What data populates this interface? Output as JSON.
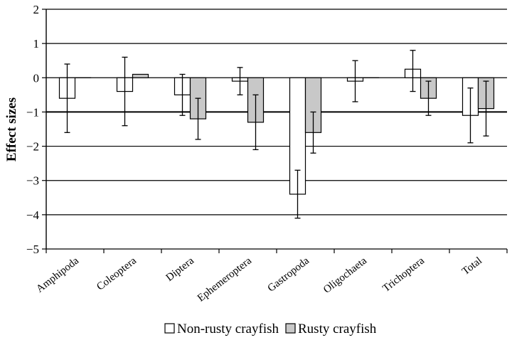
{
  "chart_data": {
    "type": "bar",
    "categories": [
      "Amphipoda",
      "Coleoptera",
      "Diptera",
      "Ephemeroptera",
      "Gastropoda",
      "Oligochaeta",
      "Trichoptera",
      "Total"
    ],
    "series": [
      {
        "name": "Non-rusty crayfish",
        "color": "#ffffff",
        "values": [
          -0.6,
          -0.4,
          -0.5,
          -0.1,
          -3.4,
          -0.1,
          0.25,
          -1.1
        ],
        "err_low": [
          -1.6,
          -1.4,
          -1.1,
          -0.5,
          -4.1,
          -0.7,
          -0.4,
          -1.9
        ],
        "err_high": [
          0.4,
          0.6,
          0.1,
          0.3,
          -2.7,
          0.5,
          0.8,
          -0.3
        ]
      },
      {
        "name": "Rusty crayfish",
        "color": "#c8c8c8",
        "values": [
          0.0,
          0.1,
          -1.2,
          -1.3,
          -1.6,
          0.0,
          -0.6,
          -0.9
        ],
        "err_low": [
          null,
          null,
          -1.8,
          -2.1,
          -2.2,
          null,
          -1.1,
          -1.7
        ],
        "err_high": [
          null,
          null,
          -0.6,
          -0.5,
          -1.0,
          null,
          -0.1,
          -0.1
        ]
      }
    ],
    "ylabel": "Effect sizes",
    "ylim": [
      -5,
      2
    ],
    "yticks": [
      "2",
      "1",
      "0",
      "−1",
      "−2",
      "−3",
      "−4",
      "−5"
    ],
    "ytick_values": [
      2,
      1,
      0,
      -1,
      -2,
      -3,
      -4,
      -5
    ],
    "grid": true,
    "legend_position": "bottom"
  }
}
